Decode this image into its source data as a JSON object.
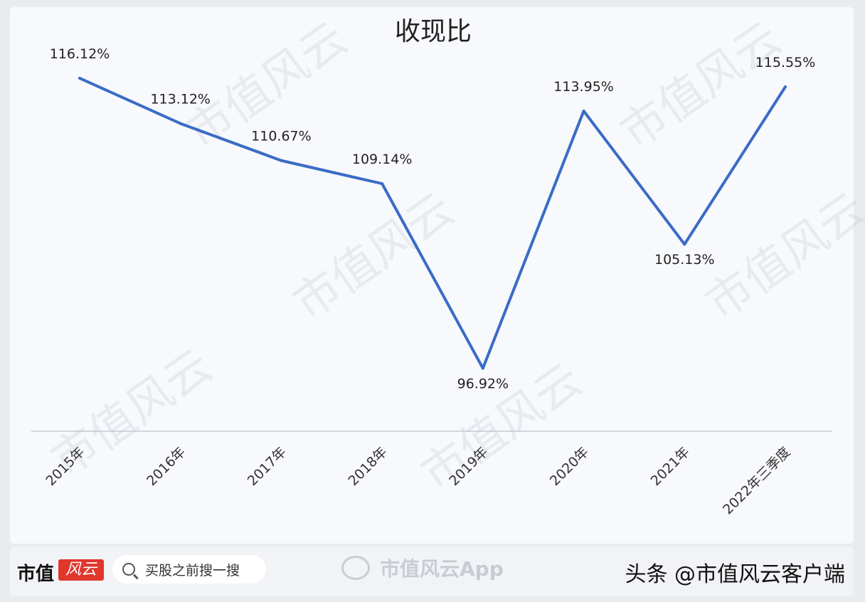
{
  "chart_data": {
    "type": "line",
    "title": "收现比",
    "categories": [
      "2015年",
      "2016年",
      "2017年",
      "2018年",
      "2019年",
      "2020年",
      "2021年",
      "2022年三季度"
    ],
    "series": [
      {
        "values": [
          116.12,
          113.12,
          110.67,
          109.14,
          96.92,
          113.95,
          105.13,
          115.55
        ]
      }
    ],
    "data_labels": [
      "116.12%",
      "113.12%",
      "110.67%",
      "109.14%",
      "96.92%",
      "113.95%",
      "105.13%",
      "115.55%"
    ],
    "ylim": [
      92,
      118
    ],
    "grid": false,
    "line_color": "#3a6cc6"
  },
  "footer": {
    "brand_text": "市值",
    "brand_logo_text": "风云",
    "search_placeholder": "买股之前搜一搜",
    "app_name": "市值风云App",
    "source_text": "头条 @市值风云客户端"
  },
  "watermark_text": "市值风云"
}
